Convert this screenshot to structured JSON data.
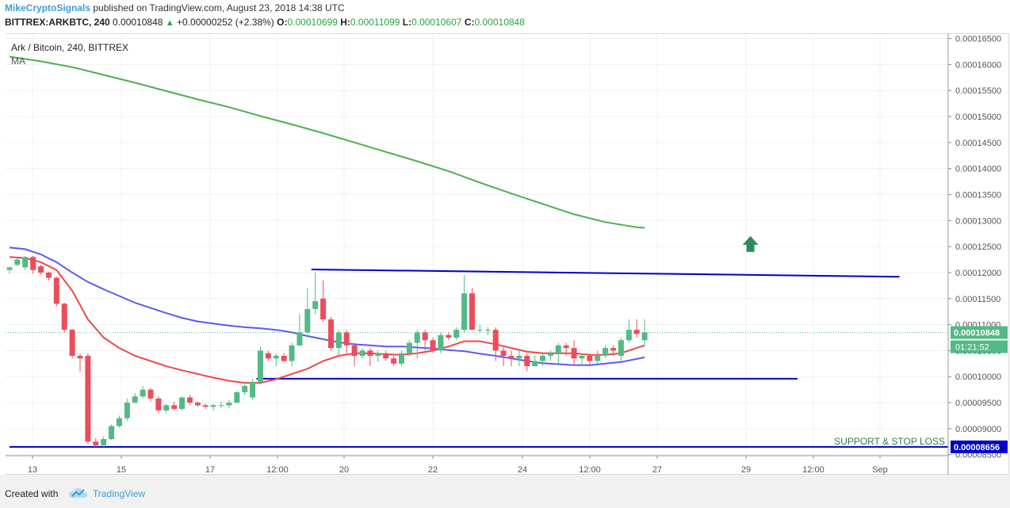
{
  "header": {
    "author": "MikeCryptoSignals",
    "published_text": "published on TradingView.com, August 23, 2018 14:38 UTC",
    "symbol": "BITTREX:ARKBTC, 240",
    "last": "0.00010848",
    "change": "+0.00000252 (+2.38%)",
    "open_label": "O:",
    "open": "0.00010699",
    "high_label": "H:",
    "high": "0.00011099",
    "low_label": "L:",
    "low": "0.00010607",
    "close_label": "C:",
    "close": "0.00010848"
  },
  "legend": {
    "title": "Ark / Bitcoin, 240, BITTREX",
    "indicator": "MA"
  },
  "footer": {
    "created_with": "Created with",
    "brand": "TradingView"
  },
  "colors": {
    "up": "#53b987",
    "down": "#eb4d5c",
    "ma_fast": "#f0474a",
    "ma_mid": "#5a5af0",
    "ma_slow": "#4caf50",
    "trend": "#0000cc",
    "arrow": "#2e8b57"
  },
  "chart_data": {
    "type": "candlestick",
    "price_axis": {
      "ticks": [
        "0.00016500",
        "0.00016000",
        "0.00015500",
        "0.00015000",
        "0.00014500",
        "0.00014000",
        "0.00013500",
        "0.00013000",
        "0.00012500",
        "0.00012000",
        "0.00011500",
        "0.00011000",
        "0.00010500",
        "0.00010000",
        "0.00009500",
        "0.00009000",
        "0.00008500"
      ],
      "ylim": [
        8.48e-05,
        0.000166
      ]
    },
    "time_axis": {
      "ticks": [
        "13",
        "15",
        "17",
        "12:00",
        "20",
        "22",
        "24",
        "12:00",
        "27",
        "29",
        "12:00",
        "Sep"
      ],
      "xlim": [
        0,
        188
      ]
    },
    "candles": [
      [
        0,
        0.0001205,
        0.000121,
        0.0001198,
        0.0001212
      ],
      [
        1,
        0.0001215,
        0.0001225,
        0.0001212,
        0.0001228
      ],
      [
        2,
        0.000121,
        0.000123,
        0.0001205,
        0.0001232
      ],
      [
        3,
        0.000123,
        0.0001205,
        0.0001198,
        0.0001232
      ],
      [
        4,
        0.0001212,
        0.00012,
        0.0001195,
        0.0001215
      ],
      [
        5,
        0.00012,
        0.000119,
        0.0001185,
        0.0001202
      ],
      [
        6,
        0.000119,
        0.000114,
        0.0001135,
        0.0001192
      ],
      [
        7,
        0.000114,
        0.000109,
        0.0001085,
        0.0001142
      ],
      [
        8,
        0.000109,
        0.000104,
        0.0001035,
        0.0001092
      ],
      [
        9,
        0.000104,
        0.0001035,
        0.000101,
        0.0001045
      ],
      [
        10,
        0.000104,
        8.75e-05,
        8.7e-05,
        0.0001045
      ],
      [
        11,
        8.75e-05,
        8.68e-05,
        8.65e-05,
        8.82e-05
      ],
      [
        12,
        8.68e-05,
        8.8e-05,
        8.65e-05,
        8.85e-05
      ],
      [
        13,
        8.8e-05,
        9.05e-05,
        8.78e-05,
        9.08e-05
      ],
      [
        14,
        9.05e-05,
        9.2e-05,
        9.02e-05,
        9.25e-05
      ],
      [
        15,
        9.2e-05,
        9.5e-05,
        9.15e-05,
        9.58e-05
      ],
      [
        16,
        9.5e-05,
        9.62e-05,
        9.48e-05,
        9.68e-05
      ],
      [
        17,
        9.62e-05,
        9.75e-05,
        9.58e-05,
        9.82e-05
      ],
      [
        18,
        9.75e-05,
        9.58e-05,
        9.52e-05,
        9.78e-05
      ],
      [
        19,
        9.58e-05,
        9.35e-05,
        9.3e-05,
        9.62e-05
      ],
      [
        20,
        9.35e-05,
        9.45e-05,
        9.3e-05,
        9.48e-05
      ],
      [
        21,
        9.45e-05,
        9.38e-05,
        9.35e-05,
        9.52e-05
      ],
      [
        22,
        9.38e-05,
        9.6e-05,
        9.35e-05,
        9.62e-05
      ],
      [
        23,
        9.6e-05,
        9.5e-05,
        9.45e-05,
        9.65e-05
      ],
      [
        24,
        9.5e-05,
        9.45e-05,
        9.42e-05,
        9.52e-05
      ],
      [
        25,
        9.45e-05,
        9.42e-05,
        9.38e-05,
        9.48e-05
      ],
      [
        26,
        9.42e-05,
        9.45e-05,
        9.35e-05,
        9.48e-05
      ],
      [
        27,
        9.45e-05,
        9.45e-05,
        9.4e-05,
        9.52e-05
      ],
      [
        28,
        9.45e-05,
        9.5e-05,
        9.4e-05,
        9.55e-05
      ],
      [
        29,
        9.5e-05,
        9.7e-05,
        9.48e-05,
        9.72e-05
      ],
      [
        30,
        9.7e-05,
        9.82e-05,
        9.65e-05,
        9.85e-05
      ],
      [
        31,
        9.6e-05,
        9.9e-05,
        9.55e-05,
        9.95e-05
      ],
      [
        32,
        9.9e-05,
        0.000105,
        9.85e-05,
        0.0001058
      ],
      [
        33,
        0.0001045,
        0.0001035,
        0.000103,
        0.000105
      ],
      [
        34,
        0.0001035,
        0.000104,
        0.000102,
        0.0001045
      ],
      [
        35,
        0.000104,
        0.000103,
        0.0001028,
        0.0001045
      ],
      [
        36,
        0.000103,
        0.000106,
        0.000102,
        0.0001065
      ],
      [
        37,
        0.000106,
        0.0001085,
        0.0001058,
        0.000112
      ],
      [
        38,
        0.0001085,
        0.000113,
        0.0001082,
        0.000117
      ],
      [
        39,
        0.000113,
        0.0001145,
        0.000112,
        0.00012
      ],
      [
        40,
        0.000115,
        0.000111,
        0.0001105,
        0.0001185
      ],
      [
        41,
        0.000111,
        0.0001055,
        0.000105,
        0.0001115
      ],
      [
        42,
        0.0001055,
        0.0001085,
        0.000104,
        0.000109
      ],
      [
        43,
        0.0001085,
        0.000106,
        0.0001045,
        0.000109
      ],
      [
        44,
        0.000106,
        0.000104,
        0.000102,
        0.0001065
      ],
      [
        45,
        0.000104,
        0.000105,
        0.0001035,
        0.0001055
      ],
      [
        46,
        0.000105,
        0.000104,
        0.000102,
        0.0001055
      ],
      [
        47,
        0.000104,
        0.0001045,
        0.0001028,
        0.000105
      ],
      [
        48,
        0.0001045,
        0.0001035,
        0.000103,
        0.000105
      ],
      [
        49,
        0.0001035,
        0.0001025,
        0.000102,
        0.000104
      ],
      [
        50,
        0.0001025,
        0.0001045,
        0.000102,
        0.000105
      ],
      [
        51,
        0.0001045,
        0.0001065,
        0.000104,
        0.000107
      ],
      [
        52,
        0.0001065,
        0.0001085,
        0.0001035,
        0.000109
      ],
      [
        53,
        0.0001085,
        0.000107,
        0.000105,
        0.000109
      ],
      [
        54,
        0.000107,
        0.000105,
        0.0001045,
        0.0001075
      ],
      [
        55,
        0.000105,
        0.000108,
        0.0001045,
        0.0001085
      ],
      [
        56,
        0.000108,
        0.0001075,
        0.000107,
        0.0001085
      ],
      [
        57,
        0.0001075,
        0.000109,
        0.000107,
        0.0001095
      ],
      [
        58,
        0.000109,
        0.000116,
        0.0001085,
        0.0001195
      ],
      [
        59,
        0.000116,
        0.000109,
        0.000109,
        0.000117
      ],
      [
        60,
        0.000109,
        0.000109,
        0.0001085,
        0.00011
      ],
      [
        61,
        0.000109,
        0.000109,
        0.000108,
        0.0001095
      ],
      [
        62,
        0.000109,
        0.000105,
        0.000103,
        0.0001095
      ],
      [
        63,
        0.000105,
        0.000104,
        0.000102,
        0.000106
      ],
      [
        64,
        0.000104,
        0.0001035,
        0.000102,
        0.000105
      ],
      [
        65,
        0.0001035,
        0.000104,
        0.000102,
        0.000105
      ],
      [
        66,
        0.000104,
        0.000102,
        0.000101,
        0.0001045
      ],
      [
        67,
        0.000102,
        0.000103,
        0.000102,
        0.000104
      ],
      [
        68,
        0.000103,
        0.000104,
        0.000102,
        0.0001045
      ],
      [
        69,
        0.000104,
        0.0001045,
        0.000103,
        0.000105
      ],
      [
        70,
        0.0001045,
        0.000106,
        0.0001025,
        0.0001065
      ],
      [
        71,
        0.000106,
        0.0001055,
        0.000104,
        0.0001065
      ],
      [
        72,
        0.0001055,
        0.0001035,
        0.000102,
        0.000107
      ],
      [
        73,
        0.0001035,
        0.000104,
        0.000102,
        0.0001045
      ],
      [
        74,
        0.000104,
        0.000103,
        0.000102,
        0.0001045
      ],
      [
        75,
        0.000103,
        0.000104,
        0.0001025,
        0.000105
      ],
      [
        76,
        0.000104,
        0.0001055,
        0.0001035,
        0.000106
      ],
      [
        77,
        0.0001055,
        0.000105,
        0.000104,
        0.000106
      ],
      [
        78,
        0.000104,
        0.000107,
        0.000103,
        0.0001075
      ],
      [
        79,
        0.000107,
        0.000109,
        0.0001065,
        0.000111
      ],
      [
        80,
        0.000109,
        0.0001082,
        0.0001075,
        0.000111
      ],
      [
        81,
        0.000107,
        0.0001085,
        0.000106,
        0.000111
      ]
    ],
    "ma_fast": [
      [
        0,
        0.000123
      ],
      [
        2,
        0.0001228
      ],
      [
        4,
        0.000122
      ],
      [
        6,
        0.0001205
      ],
      [
        8,
        0.0001165
      ],
      [
        10,
        0.000111
      ],
      [
        12,
        0.0001075
      ],
      [
        14,
        0.0001055
      ],
      [
        16,
        0.000104
      ],
      [
        18,
        0.000103
      ],
      [
        20,
        0.000102
      ],
      [
        22,
        0.0001012
      ],
      [
        24,
        0.0001005
      ],
      [
        26,
        9.98e-05
      ],
      [
        28,
        9.92e-05
      ],
      [
        30,
        9.88e-05
      ],
      [
        32,
        9.88e-05
      ],
      [
        34,
        9.95e-05
      ],
      [
        36,
        0.0001005
      ],
      [
        38,
        0.0001015
      ],
      [
        40,
        0.000103
      ],
      [
        42,
        0.000104
      ],
      [
        44,
        0.0001045
      ],
      [
        46,
        0.0001045
      ],
      [
        48,
        0.0001043
      ],
      [
        50,
        0.0001042
      ],
      [
        52,
        0.0001045
      ],
      [
        54,
        0.000105
      ],
      [
        56,
        0.0001058
      ],
      [
        58,
        0.0001068
      ],
      [
        60,
        0.0001068
      ],
      [
        62,
        0.0001062
      ],
      [
        64,
        0.0001055
      ],
      [
        66,
        0.0001048
      ],
      [
        68,
        0.0001045
      ],
      [
        70,
        0.0001045
      ],
      [
        72,
        0.0001045
      ],
      [
        74,
        0.0001042
      ],
      [
        76,
        0.0001042
      ],
      [
        78,
        0.0001045
      ],
      [
        80,
        0.0001055
      ],
      [
        81,
        0.000106
      ]
    ],
    "ma_mid": [
      [
        0,
        0.0001248
      ],
      [
        2,
        0.0001245
      ],
      [
        4,
        0.0001235
      ],
      [
        6,
        0.000122
      ],
      [
        8,
        0.00012
      ],
      [
        10,
        0.0001182
      ],
      [
        12,
        0.0001168
      ],
      [
        14,
        0.0001155
      ],
      [
        16,
        0.0001142
      ],
      [
        18,
        0.0001132
      ],
      [
        20,
        0.0001122
      ],
      [
        22,
        0.0001113
      ],
      [
        24,
        0.0001106
      ],
      [
        26,
        0.0001102
      ],
      [
        28,
        0.0001098
      ],
      [
        30,
        0.0001095
      ],
      [
        32,
        0.0001093
      ],
      [
        34,
        0.000109
      ],
      [
        36,
        0.0001085
      ],
      [
        38,
        0.0001078
      ],
      [
        40,
        0.0001072
      ],
      [
        42,
        0.0001066
      ],
      [
        44,
        0.0001062
      ],
      [
        46,
        0.000106
      ],
      [
        48,
        0.0001058
      ],
      [
        50,
        0.0001058
      ],
      [
        52,
        0.0001056
      ],
      [
        54,
        0.0001054
      ],
      [
        56,
        0.0001051
      ],
      [
        58,
        0.0001049
      ],
      [
        60,
        0.0001044
      ],
      [
        62,
        0.000104
      ],
      [
        64,
        0.0001035
      ],
      [
        66,
        0.000103
      ],
      [
        68,
        0.0001026
      ],
      [
        70,
        0.0001024
      ],
      [
        72,
        0.0001022
      ],
      [
        74,
        0.0001022
      ],
      [
        76,
        0.0001025
      ],
      [
        78,
        0.0001028
      ],
      [
        80,
        0.0001034
      ],
      [
        81,
        0.0001037
      ]
    ],
    "ma_slow": [
      [
        0,
        0.0001615
      ],
      [
        4,
        0.0001606
      ],
      [
        8,
        0.0001595
      ],
      [
        12,
        0.000158
      ],
      [
        16,
        0.0001565
      ],
      [
        20,
        0.0001549
      ],
      [
        24,
        0.0001533
      ],
      [
        28,
        0.0001518
      ],
      [
        32,
        0.0001501
      ],
      [
        36,
        0.0001485
      ],
      [
        40,
        0.0001468
      ],
      [
        44,
        0.000145
      ],
      [
        48,
        0.0001432
      ],
      [
        52,
        0.0001414
      ],
      [
        56,
        0.0001395
      ],
      [
        60,
        0.0001373
      ],
      [
        64,
        0.0001352
      ],
      [
        68,
        0.0001332
      ],
      [
        72,
        0.0001312
      ],
      [
        76,
        0.0001297
      ],
      [
        80,
        0.0001287
      ],
      [
        81,
        0.0001286
      ]
    ],
    "lines": [
      {
        "name": "resistance",
        "x1": 38.5,
        "y1": 0.0001206,
        "x2": 113.5,
        "y2": 0.0001192
      },
      {
        "name": "mid-support",
        "x1": 31.5,
        "y1": 9.96e-05,
        "x2": 100.5,
        "y2": 9.96e-05
      },
      {
        "name": "support-stop",
        "x1": 0,
        "y1": 8.65e-05,
        "x2": 188,
        "y2": 8.65e-05
      }
    ],
    "last_price_line": 0.00010848,
    "up_arrow": {
      "x": 94.5,
      "y": 0.0001252
    },
    "labels": {
      "support_text": "SUPPORT & STOP LOSS",
      "last_price": "0.00010848",
      "countdown": "01:21:52",
      "support_price": "0.00008656"
    }
  }
}
